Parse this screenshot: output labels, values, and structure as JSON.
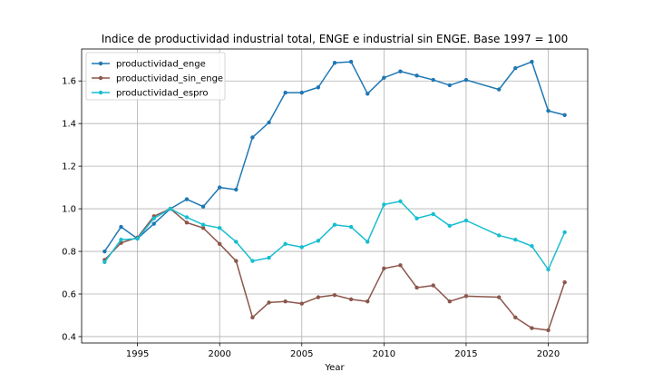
{
  "chart_data": {
    "type": "line",
    "title": "Indice de productividad industrial total, ENGE e industrial sin ENGE. Base 1997 = 100",
    "xlabel": "Year",
    "ylabel": "",
    "xlim": [
      1991.6,
      2022.4
    ],
    "ylim": [
      0.37,
      1.75
    ],
    "xticks": [
      1995,
      2000,
      2005,
      2010,
      2015,
      2020
    ],
    "yticks": [
      0.4,
      0.6,
      0.8,
      1.0,
      1.2,
      1.4,
      1.6
    ],
    "ytick_labels": [
      "0.4",
      "0.6",
      "0.8",
      "1.0",
      "1.2",
      "1.4",
      "1.6"
    ],
    "grid": true,
    "legend_position": "top-left",
    "series": [
      {
        "name": "productividad_enge",
        "color": "#1f77b4",
        "x": [
          1993,
          1994,
          1995,
          1996,
          1997,
          1998,
          1999,
          2000,
          2001,
          2002,
          2003,
          2004,
          2005,
          2006,
          2007,
          2008,
          2009,
          2010,
          2011,
          2012,
          2013,
          2014,
          2015,
          2017,
          2018,
          2019,
          2020,
          2021
        ],
        "values": [
          0.8,
          0.915,
          0.86,
          0.93,
          1.0,
          1.045,
          1.01,
          1.1,
          1.09,
          1.335,
          1.405,
          1.545,
          1.545,
          1.57,
          1.685,
          1.69,
          1.54,
          1.615,
          1.645,
          1.625,
          1.605,
          1.58,
          1.605,
          1.56,
          1.66,
          1.69,
          1.46,
          1.44
        ]
      },
      {
        "name": "productividad_sin_enge",
        "color": "#8c564b",
        "x": [
          1993,
          1994,
          1995,
          1996,
          1997,
          1998,
          1999,
          2000,
          2001,
          2002,
          2003,
          2004,
          2005,
          2006,
          2007,
          2008,
          2009,
          2010,
          2011,
          2012,
          2013,
          2014,
          2015,
          2017,
          2018,
          2019,
          2020,
          2021
        ],
        "values": [
          0.76,
          0.84,
          0.865,
          0.965,
          1.0,
          0.935,
          0.91,
          0.835,
          0.755,
          0.49,
          0.56,
          0.565,
          0.555,
          0.585,
          0.595,
          0.575,
          0.565,
          0.72,
          0.735,
          0.63,
          0.64,
          0.565,
          0.59,
          0.585,
          0.49,
          0.44,
          0.43,
          0.655
        ]
      },
      {
        "name": "productividad_espro",
        "color": "#17becf",
        "x": [
          1993,
          1994,
          1995,
          1996,
          1997,
          1998,
          1999,
          2000,
          2001,
          2002,
          2003,
          2004,
          2005,
          2006,
          2007,
          2008,
          2009,
          2010,
          2011,
          2012,
          2013,
          2014,
          2015,
          2017,
          2018,
          2019,
          2020,
          2021
        ],
        "values": [
          0.75,
          0.855,
          0.86,
          0.955,
          1.0,
          0.96,
          0.925,
          0.91,
          0.845,
          0.755,
          0.77,
          0.835,
          0.82,
          0.85,
          0.925,
          0.915,
          0.845,
          1.02,
          1.035,
          0.955,
          0.975,
          0.92,
          0.945,
          0.875,
          0.855,
          0.825,
          0.715,
          0.89
        ]
      }
    ]
  }
}
